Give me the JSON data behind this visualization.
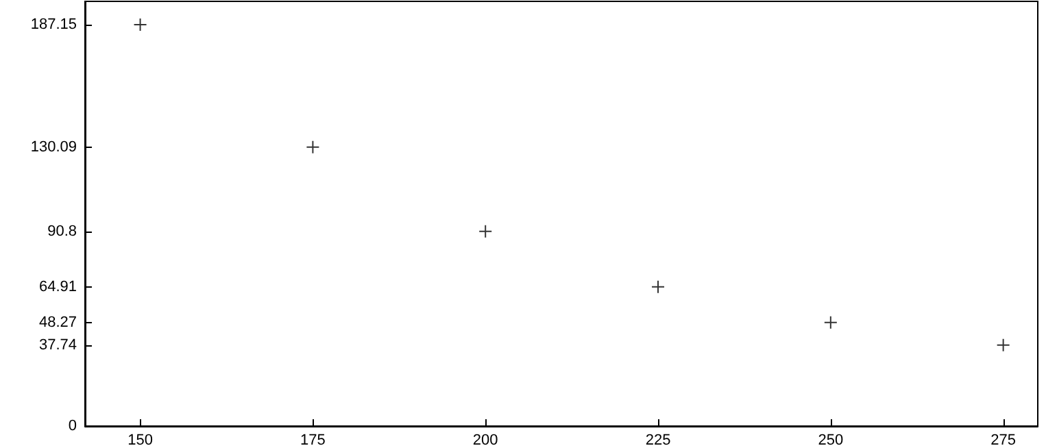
{
  "chart_data": {
    "type": "scatter",
    "x": [
      150,
      175,
      200,
      225,
      250,
      275
    ],
    "values": [
      187.15,
      130.09,
      90.8,
      64.91,
      48.27,
      37.74
    ],
    "color": "#000000",
    "marker": "cross",
    "grid": false,
    "xlim": [
      142,
      280
    ],
    "xticks": [
      150,
      175,
      200,
      225,
      250,
      275
    ],
    "ylim": [
      0,
      198
    ],
    "yticks": [
      0,
      37.74,
      48.27,
      64.91,
      90.8,
      130.09,
      187.15
    ]
  }
}
